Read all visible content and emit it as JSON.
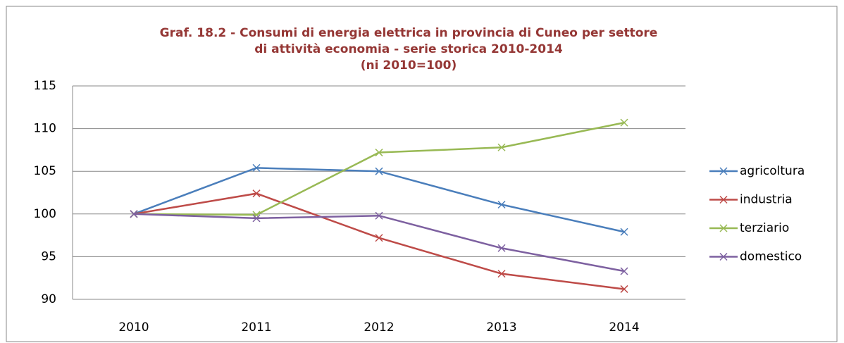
{
  "chart_data": {
    "type": "line",
    "title": [
      "Graf. 18.2 - Consumi di energia elettrica in provincia di Cuneo per settore",
      "di attività economia - serie storica 2010-2014",
      "(ni 2010=100)"
    ],
    "categories": [
      "2010",
      "2011",
      "2012",
      "2013",
      "2014"
    ],
    "series": [
      {
        "name": "agricoltura",
        "color": "#4a7ebb",
        "values": [
          100,
          105.4,
          105.0,
          101.1,
          97.9
        ]
      },
      {
        "name": "industria",
        "color": "#be4b48",
        "values": [
          100,
          102.4,
          97.2,
          93.0,
          91.2
        ]
      },
      {
        "name": "terziario",
        "color": "#98b954",
        "values": [
          100,
          99.9,
          107.2,
          107.8,
          110.7
        ]
      },
      {
        "name": "domestico",
        "color": "#7d60a0",
        "values": [
          100,
          99.5,
          99.8,
          96.0,
          93.3
        ]
      }
    ],
    "ylim": [
      90,
      115
    ],
    "yticks": [
      90,
      95,
      100,
      105,
      110,
      115
    ],
    "grid": true,
    "legend": "right"
  }
}
